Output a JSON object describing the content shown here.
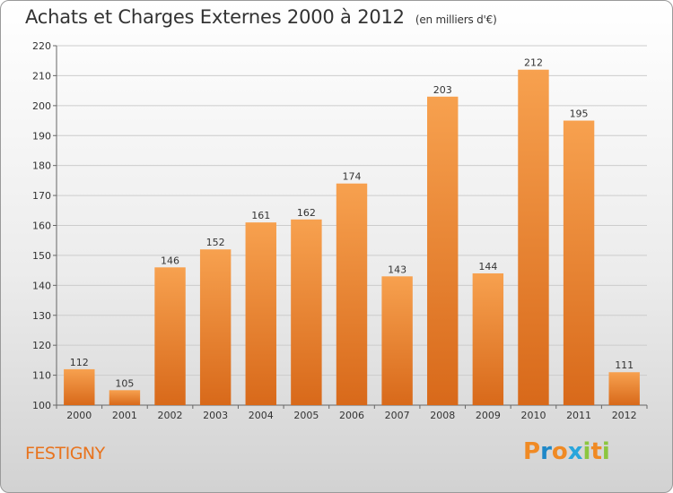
{
  "header": {
    "title": "Achats et Charges Externes 2000 à 2012",
    "unit": "(en milliers d'€)"
  },
  "footer": {
    "commune": "FESTIGNY",
    "logo": [
      "P",
      "r",
      "o",
      "x",
      "i",
      "t",
      "i"
    ],
    "logo_colors": [
      "#f08a24",
      "#1e88c8",
      "#f08a24",
      "#29a6dc",
      "#8cc63f",
      "#f08a24",
      "#8cc63f"
    ]
  },
  "colors": {
    "bar_top": "#f7a14f",
    "bar_bottom": "#d8691a",
    "grid": "#cccccc",
    "text": "#333333"
  },
  "chart_data": {
    "type": "bar",
    "categories": [
      "2000",
      "2001",
      "2002",
      "2003",
      "2004",
      "2005",
      "2006",
      "2007",
      "2008",
      "2009",
      "2010",
      "2011",
      "2012"
    ],
    "values": [
      112,
      105,
      146,
      152,
      161,
      162,
      174,
      143,
      203,
      144,
      212,
      195,
      111
    ],
    "data_labels": [
      "112",
      "105",
      "146",
      "152",
      "161",
      "162",
      "174",
      "143",
      "203",
      "144",
      "212",
      "195",
      "111"
    ],
    "yticks": [
      "100",
      "110",
      "120",
      "130",
      "140",
      "150",
      "160",
      "170",
      "180",
      "190",
      "200",
      "210",
      "220"
    ],
    "ylim": [
      100,
      220
    ],
    "grid": true,
    "legend": "none"
  }
}
